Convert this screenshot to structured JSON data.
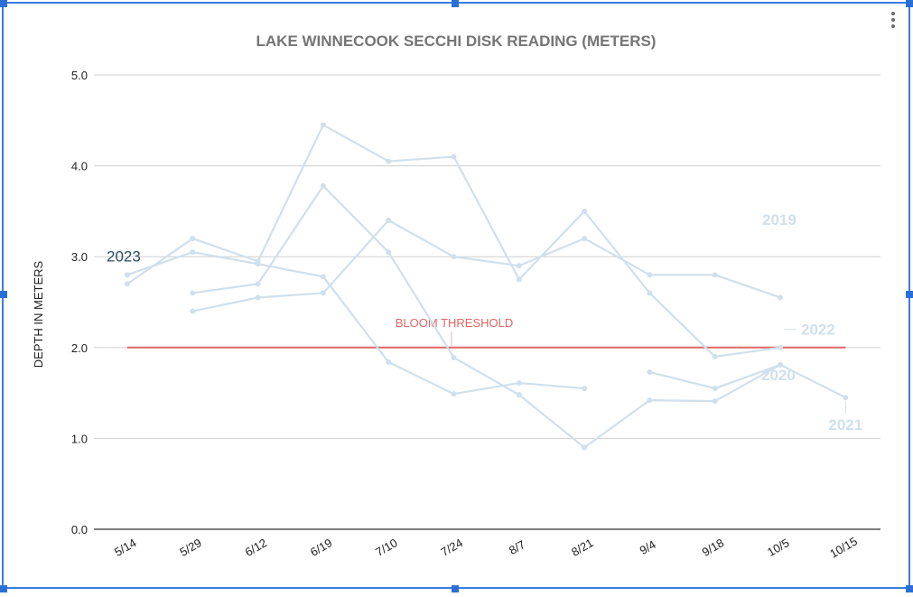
{
  "chart_data": {
    "type": "line",
    "title": "LAKE WINNECOOK SECCHI DISK READING (METERS)",
    "xlabel": "",
    "ylabel": "DEPTH IN METERS",
    "categories": [
      "5/14",
      "5/29",
      "6/12",
      "6/19",
      "7/10",
      "7/24",
      "8/7",
      "8/21",
      "9/4",
      "9/18",
      "10/5",
      "10/15"
    ],
    "ylim": [
      0,
      5
    ],
    "yticks": [
      "0.0",
      "1.0",
      "2.0",
      "3.0",
      "4.0",
      "5.0"
    ],
    "grid": true,
    "legend": "none",
    "series": [
      {
        "name": "2019",
        "values": [
          2.7,
          3.2,
          2.95,
          4.45,
          4.05,
          4.1,
          2.75,
          3.5,
          2.6,
          1.9,
          2.0,
          null
        ]
      },
      {
        "name": "2020",
        "values": [
          null,
          2.6,
          2.7,
          3.78,
          3.05,
          1.89,
          1.48,
          0.9,
          1.42,
          1.41,
          1.81,
          null
        ]
      },
      {
        "name": "2021",
        "values": [
          null,
          null,
          null,
          null,
          null,
          null,
          null,
          null,
          1.73,
          1.55,
          1.81,
          1.45
        ]
      },
      {
        "name": "2022",
        "values": [
          null,
          2.4,
          2.55,
          2.6,
          3.4,
          3.0,
          2.9,
          3.2,
          2.8,
          2.8,
          2.55,
          null
        ]
      },
      {
        "name": "2023",
        "values": [
          2.8,
          3.05,
          2.92,
          2.78,
          1.84,
          1.49,
          1.61,
          1.55,
          null,
          null,
          null,
          null
        ]
      }
    ],
    "threshold": {
      "label": "BLOOM THRESHOLD",
      "value": 2.0,
      "color": "#e06666"
    },
    "series_color": "#d0e0ec",
    "highlight_color": "#2f4f5f"
  }
}
